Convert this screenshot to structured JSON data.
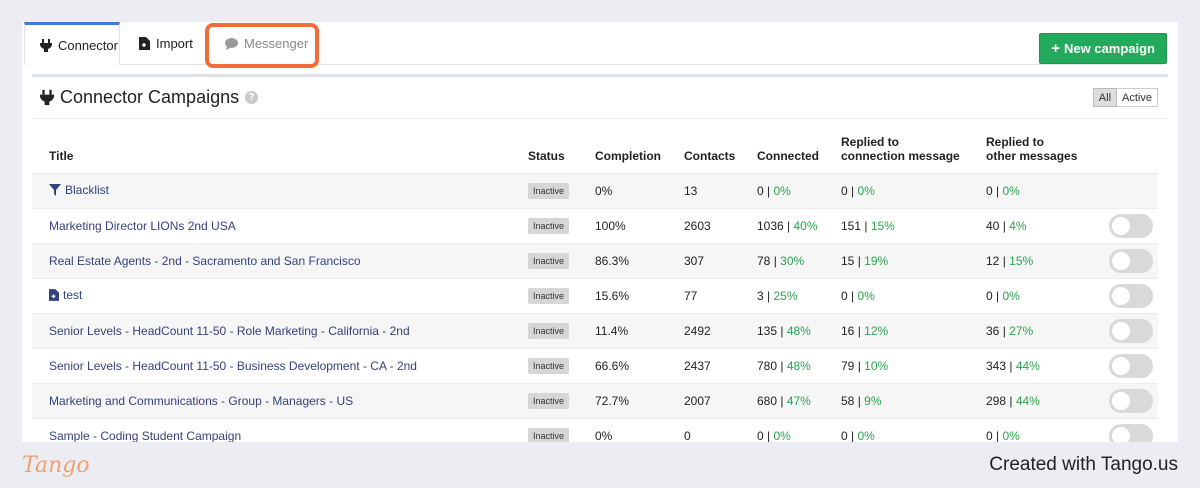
{
  "tabs": [
    {
      "label": "Connector",
      "icon": "plug-icon"
    },
    {
      "label": "Import",
      "icon": "file-import-icon"
    },
    {
      "label": "Messenger",
      "icon": "chat-bubble-icon"
    }
  ],
  "new_campaign_label": "New campaign",
  "section": {
    "title": "Connector Campaigns",
    "help": "?",
    "filters": [
      "All",
      "Active"
    ]
  },
  "columns": {
    "title": "Title",
    "status": "Status",
    "completion": "Completion",
    "contacts": "Contacts",
    "connected": "Connected",
    "replied_conn_1": "Replied to",
    "replied_conn_2": "connection message",
    "replied_other_1": "Replied to",
    "replied_other_2": "other messages"
  },
  "rows": [
    {
      "title": "Blacklist",
      "icon": "filter-icon",
      "status": "Inactive",
      "completion": "0%",
      "contacts": "13",
      "connected_n": "0",
      "connected_p": "0%",
      "rep1_n": "0",
      "rep1_p": "0%",
      "rep2_n": "0",
      "rep2_p": "0%",
      "toggle": false
    },
    {
      "title": "Marketing Director LIONs 2nd USA",
      "status": "Inactive",
      "completion": "100%",
      "contacts": "2603",
      "connected_n": "1036",
      "connected_p": "40%",
      "rep1_n": "151",
      "rep1_p": "15%",
      "rep2_n": "40",
      "rep2_p": "4%",
      "toggle": true
    },
    {
      "title": "Real Estate Agents - 2nd - Sacramento and San Francisco",
      "status": "Inactive",
      "completion": "86.3%",
      "contacts": "307",
      "connected_n": "78",
      "connected_p": "30%",
      "rep1_n": "15",
      "rep1_p": "19%",
      "rep2_n": "12",
      "rep2_p": "15%",
      "toggle": true
    },
    {
      "title": "test",
      "icon": "file-import-icon",
      "status": "Inactive",
      "completion": "15.6%",
      "contacts": "77",
      "connected_n": "3",
      "connected_p": "25%",
      "rep1_n": "0",
      "rep1_p": "0%",
      "rep2_n": "0",
      "rep2_p": "0%",
      "toggle": true
    },
    {
      "title": "Senior Levels - HeadCount 11-50 - Role Marketing - California - 2nd",
      "status": "Inactive",
      "completion": "11.4%",
      "contacts": "2492",
      "connected_n": "135",
      "connected_p": "48%",
      "rep1_n": "16",
      "rep1_p": "12%",
      "rep2_n": "36",
      "rep2_p": "27%",
      "toggle": true
    },
    {
      "title": "Senior Levels - HeadCount 11-50 - Business Development - CA - 2nd",
      "status": "Inactive",
      "completion": "66.6%",
      "contacts": "2437",
      "connected_n": "780",
      "connected_p": "48%",
      "rep1_n": "79",
      "rep1_p": "10%",
      "rep2_n": "343",
      "rep2_p": "44%",
      "toggle": true
    },
    {
      "title": "Marketing and Communications - Group - Managers - US",
      "status": "Inactive",
      "completion": "72.7%",
      "contacts": "2007",
      "connected_n": "680",
      "connected_p": "47%",
      "rep1_n": "58",
      "rep1_p": "9%",
      "rep2_n": "298",
      "rep2_p": "44%",
      "toggle": true
    },
    {
      "title": "Sample - Coding Student Campaign",
      "status": "Inactive",
      "completion": "0%",
      "contacts": "0",
      "connected_n": "0",
      "connected_p": "0%",
      "rep1_n": "0",
      "rep1_p": "0%",
      "rep2_n": "0",
      "rep2_p": "0%",
      "toggle": true
    }
  ],
  "footer": {
    "logo": "Tango",
    "created": "Created with Tango.us"
  },
  "colors": {
    "accent_green": "#23a95b",
    "percent_green": "#2aa44f",
    "link": "#35427d",
    "highlight": "#f26b3a"
  }
}
